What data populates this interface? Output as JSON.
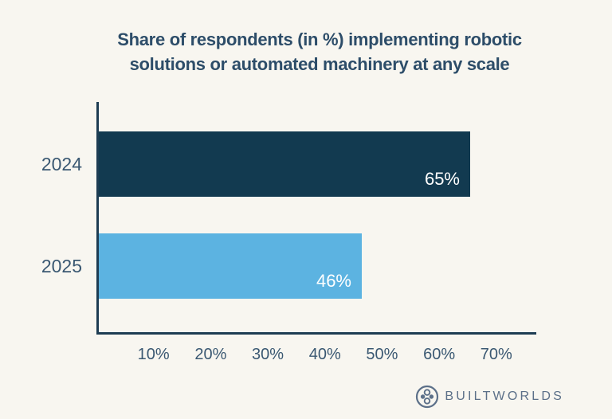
{
  "title": {
    "line1": "Share of respondents (in %) implementing robotic",
    "line2": "solutions or automated machinery at any scale"
  },
  "chart_data": {
    "type": "bar",
    "orientation": "horizontal",
    "title": "Share of respondents (in %) implementing robotic solutions or automated machinery at any scale",
    "categories": [
      "2024",
      "2025"
    ],
    "values": [
      65,
      46
    ],
    "value_labels": [
      "65%",
      "46%"
    ],
    "series_colors": [
      "#123a50",
      "#5cb3e1"
    ],
    "value_label_color": "#ffffff",
    "x_axis": {
      "min": 0,
      "max": 77,
      "unit": "%",
      "tick_values": [
        10,
        20,
        30,
        40,
        50,
        60,
        70
      ],
      "tick_labels": [
        "10%",
        "20%",
        "30%",
        "40%",
        "50%",
        "60%",
        "70%"
      ]
    },
    "grid": false,
    "legend": "none"
  },
  "branding": {
    "logo_text": "BUILTWORLDS"
  },
  "colors": {
    "background": "#f8f6f0",
    "title": "#2d4d69",
    "axis": "#1e3d53",
    "labels": "#3a5872",
    "bar_2024": "#123a50",
    "bar_2025": "#5cb3e1",
    "logo": "#5c7089"
  }
}
